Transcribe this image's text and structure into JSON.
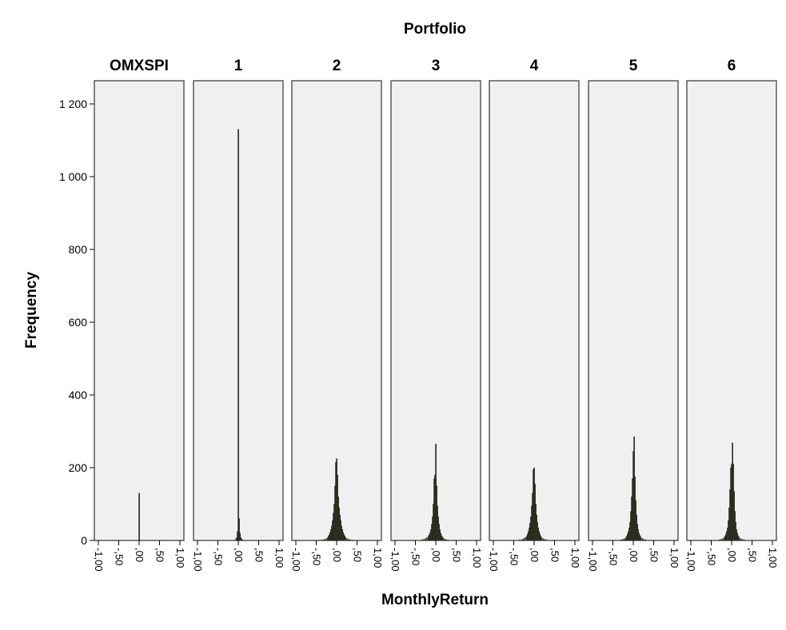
{
  "chart_data": {
    "type": "bar",
    "title": "Portfolio",
    "xlabel": "MonthlyReturn",
    "ylabel": "Frequency",
    "ylim": [
      0,
      1200
    ],
    "yticks": [
      0,
      200,
      400,
      600,
      800,
      1000,
      1200
    ],
    "ytick_labels": [
      "0",
      "200",
      "400",
      "600",
      "800",
      "1 000",
      "1 200"
    ],
    "xlim": [
      -1.0,
      1.0
    ],
    "xticks": [
      -1.0,
      -0.5,
      0.0,
      0.5,
      1.0
    ],
    "xtick_labels": [
      "-1,00",
      "-,50",
      ",00",
      ",50",
      "1,00"
    ],
    "grid": false,
    "bar_color": "#3b3b2c",
    "panel_bg": "#f0f0f0",
    "bin_width": 0.02,
    "panels": [
      {
        "name": "OMXSPI",
        "bins": [
          [
            0.0,
            130
          ]
        ]
      },
      {
        "name": "1",
        "bins": [
          [
            -0.06,
            3
          ],
          [
            -0.04,
            8
          ],
          [
            -0.02,
            25
          ],
          [
            0.0,
            1130
          ],
          [
            0.02,
            60
          ],
          [
            0.04,
            20
          ],
          [
            0.06,
            8
          ],
          [
            0.08,
            4
          ],
          [
            0.1,
            2
          ]
        ]
      },
      {
        "name": "2",
        "bins": [
          [
            -0.4,
            1
          ],
          [
            -0.34,
            2
          ],
          [
            -0.3,
            3
          ],
          [
            -0.26,
            5
          ],
          [
            -0.22,
            8
          ],
          [
            -0.2,
            12
          ],
          [
            -0.18,
            16
          ],
          [
            -0.16,
            22
          ],
          [
            -0.14,
            30
          ],
          [
            -0.12,
            40
          ],
          [
            -0.1,
            55
          ],
          [
            -0.08,
            75
          ],
          [
            -0.06,
            100
          ],
          [
            -0.04,
            150
          ],
          [
            -0.02,
            215
          ],
          [
            0.0,
            225
          ],
          [
            0.02,
            180
          ],
          [
            0.04,
            120
          ],
          [
            0.06,
            90
          ],
          [
            0.08,
            70
          ],
          [
            0.1,
            55
          ],
          [
            0.12,
            40
          ],
          [
            0.14,
            30
          ],
          [
            0.16,
            22
          ],
          [
            0.18,
            16
          ],
          [
            0.2,
            12
          ],
          [
            0.22,
            8
          ],
          [
            0.26,
            5
          ],
          [
            0.3,
            3
          ],
          [
            0.34,
            2
          ],
          [
            0.4,
            1
          ]
        ]
      },
      {
        "name": "3",
        "bins": [
          [
            -0.34,
            2
          ],
          [
            -0.3,
            3
          ],
          [
            -0.26,
            5
          ],
          [
            -0.22,
            8
          ],
          [
            -0.18,
            12
          ],
          [
            -0.16,
            16
          ],
          [
            -0.14,
            22
          ],
          [
            -0.12,
            30
          ],
          [
            -0.1,
            45
          ],
          [
            -0.08,
            65
          ],
          [
            -0.06,
            100
          ],
          [
            -0.04,
            170
          ],
          [
            -0.02,
            180
          ],
          [
            0.0,
            265
          ],
          [
            0.02,
            150
          ],
          [
            0.04,
            95
          ],
          [
            0.06,
            65
          ],
          [
            0.08,
            45
          ],
          [
            0.1,
            30
          ],
          [
            0.12,
            20
          ],
          [
            0.14,
            14
          ],
          [
            0.16,
            10
          ],
          [
            0.18,
            7
          ],
          [
            0.22,
            4
          ],
          [
            0.26,
            2
          ],
          [
            0.3,
            1
          ]
        ]
      },
      {
        "name": "4",
        "bins": [
          [
            -0.36,
            2
          ],
          [
            -0.3,
            3
          ],
          [
            -0.26,
            5
          ],
          [
            -0.22,
            8
          ],
          [
            -0.18,
            12
          ],
          [
            -0.16,
            18
          ],
          [
            -0.14,
            25
          ],
          [
            -0.12,
            35
          ],
          [
            -0.1,
            48
          ],
          [
            -0.08,
            65
          ],
          [
            -0.06,
            95
          ],
          [
            -0.04,
            130
          ],
          [
            -0.02,
            195
          ],
          [
            0.0,
            200
          ],
          [
            0.02,
            155
          ],
          [
            0.04,
            100
          ],
          [
            0.06,
            70
          ],
          [
            0.08,
            50
          ],
          [
            0.1,
            35
          ],
          [
            0.12,
            25
          ],
          [
            0.14,
            18
          ],
          [
            0.16,
            12
          ],
          [
            0.18,
            8
          ],
          [
            0.22,
            5
          ],
          [
            0.26,
            3
          ],
          [
            0.3,
            2
          ]
        ]
      },
      {
        "name": "5",
        "bins": [
          [
            -0.3,
            2
          ],
          [
            -0.26,
            3
          ],
          [
            -0.22,
            5
          ],
          [
            -0.18,
            8
          ],
          [
            -0.16,
            12
          ],
          [
            -0.14,
            18
          ],
          [
            -0.12,
            25
          ],
          [
            -0.1,
            35
          ],
          [
            -0.08,
            50
          ],
          [
            -0.06,
            80
          ],
          [
            -0.04,
            120
          ],
          [
            -0.02,
            170
          ],
          [
            0.0,
            245
          ],
          [
            0.02,
            285
          ],
          [
            0.04,
            175
          ],
          [
            0.06,
            110
          ],
          [
            0.08,
            70
          ],
          [
            0.1,
            45
          ],
          [
            0.12,
            30
          ],
          [
            0.14,
            20
          ],
          [
            0.16,
            14
          ],
          [
            0.18,
            10
          ],
          [
            0.22,
            6
          ],
          [
            0.26,
            3
          ],
          [
            0.3,
            2
          ]
        ]
      },
      {
        "name": "6",
        "bins": [
          [
            -0.3,
            2
          ],
          [
            -0.26,
            3
          ],
          [
            -0.22,
            5
          ],
          [
            -0.18,
            8
          ],
          [
            -0.16,
            12
          ],
          [
            -0.14,
            18
          ],
          [
            -0.12,
            25
          ],
          [
            -0.1,
            35
          ],
          [
            -0.08,
            55
          ],
          [
            -0.06,
            90
          ],
          [
            -0.04,
            140
          ],
          [
            -0.02,
            200
          ],
          [
            0.0,
            210
          ],
          [
            0.02,
            268
          ],
          [
            0.04,
            210
          ],
          [
            0.06,
            135
          ],
          [
            0.08,
            80
          ],
          [
            0.1,
            50
          ],
          [
            0.12,
            30
          ],
          [
            0.14,
            20
          ],
          [
            0.16,
            13
          ],
          [
            0.18,
            9
          ],
          [
            0.22,
            5
          ],
          [
            0.26,
            3
          ],
          [
            0.3,
            2
          ]
        ]
      }
    ]
  }
}
